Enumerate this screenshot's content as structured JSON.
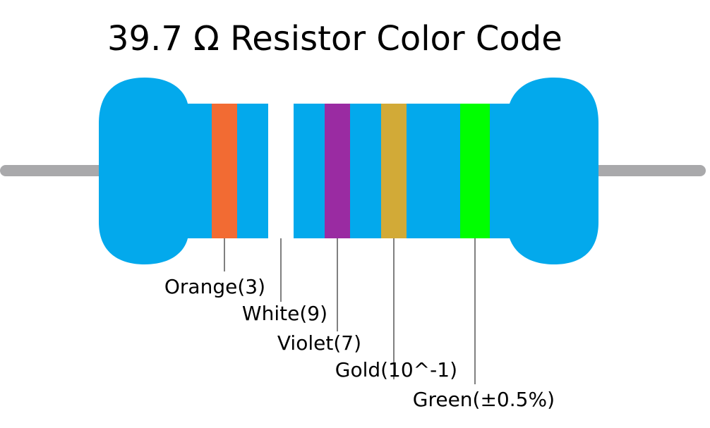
{
  "title": "39.7 Ω Resistor Color Code",
  "colors": {
    "body": "#03A9EC",
    "lead": "#A9A9AB",
    "leader_line": "#000000"
  },
  "bands": [
    {
      "label": "Orange(3)",
      "color": "#F26B33"
    },
    {
      "label": "White(9)",
      "color": "#FFFFFF"
    },
    {
      "label": "Violet(7)",
      "color": "#9A2BA2"
    },
    {
      "label": "Gold(10^-1)",
      "color": "#D2AA37"
    },
    {
      "label": "Green(±0.5%)",
      "color": "#00FF00"
    }
  ]
}
